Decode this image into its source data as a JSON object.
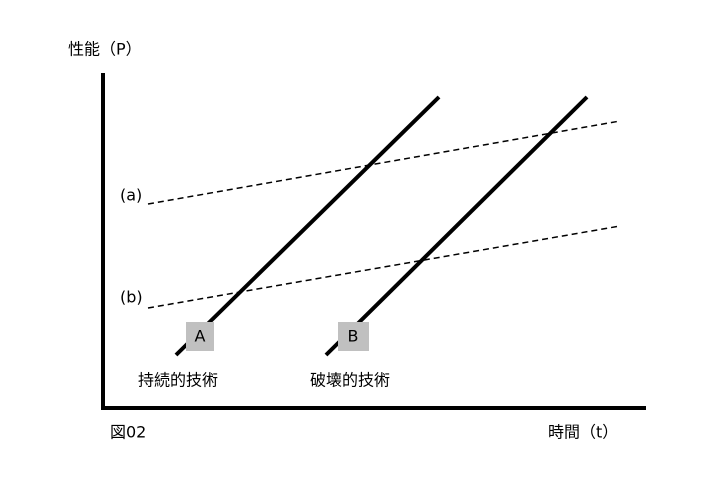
{
  "axes": {
    "y_label": "性能（P）",
    "x_label": "時間（t）"
  },
  "figure_label": "図02",
  "levels": {
    "a": "(a)",
    "b": "(b)"
  },
  "technologies": [
    {
      "badge": "A",
      "label": "持続的技術"
    },
    {
      "badge": "B",
      "label": "破壊的技術"
    }
  ]
}
